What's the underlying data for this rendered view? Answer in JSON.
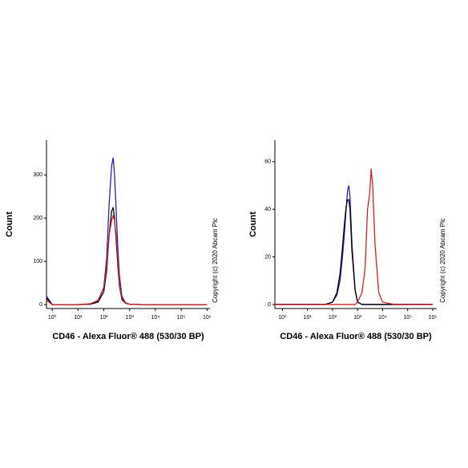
{
  "chart_data": [
    {
      "type": "line",
      "xscale": "log",
      "ylabel": "Count",
      "xlabel": "CD46 - Alexa Fluor® 488 (530/30 BP)",
      "annotation": "Copyright (c) 2020 Abcam Plc",
      "xlim": [
        0.6,
        1300000
      ],
      "ylim": [
        -9,
        380
      ],
      "xticks": [
        {
          "value": 1,
          "label": "10⁰"
        },
        {
          "value": 10,
          "label": "10¹"
        },
        {
          "value": 100,
          "label": "10²"
        },
        {
          "value": 1000,
          "label": "10³"
        },
        {
          "value": 10000,
          "label": "10⁴"
        },
        {
          "value": 100000,
          "label": "10⁵"
        },
        {
          "value": 1000000,
          "label": "10⁶"
        }
      ],
      "yticks": [
        0,
        100,
        200,
        300
      ],
      "x": [
        0.6,
        1,
        3,
        10,
        30,
        60,
        100,
        130,
        160,
        200,
        230,
        260,
        300,
        350,
        400,
        500,
        700,
        1000,
        3000,
        10000,
        100000,
        1000000
      ],
      "series": [
        {
          "color": "#2424b8",
          "values": [
            20,
            0,
            0,
            0,
            1,
            8,
            40,
            110,
            230,
            320,
            340,
            300,
            220,
            130,
            70,
            20,
            4,
            1,
            0,
            0,
            0,
            0
          ]
        },
        {
          "color": "#000000",
          "values": [
            15,
            0,
            0,
            0,
            1,
            6,
            30,
            80,
            160,
            215,
            225,
            200,
            150,
            90,
            45,
            12,
            3,
            1,
            0,
            0,
            0,
            0
          ]
        },
        {
          "color": "#cc2222",
          "values": [
            10,
            0,
            0,
            0,
            2,
            10,
            40,
            90,
            160,
            195,
            205,
            195,
            160,
            100,
            50,
            15,
            4,
            1,
            0,
            0,
            0,
            0
          ]
        }
      ]
    },
    {
      "type": "line",
      "xscale": "log",
      "ylabel": "Count",
      "xlabel": "CD46 - Alexa Fluor® 488 (530/30 BP)",
      "annotation": "Copyright (c) 2020 Abcam Plc",
      "xlim": [
        0.5,
        1450000
      ],
      "ylim": [
        -1.7,
        69
      ],
      "xticks": [
        {
          "value": 1,
          "label": "10⁰"
        },
        {
          "value": 10,
          "label": "10¹"
        },
        {
          "value": 100,
          "label": "10²"
        },
        {
          "value": 1000,
          "label": "10³"
        },
        {
          "value": 10000,
          "label": "10⁴"
        },
        {
          "value": 100000,
          "label": "10⁵"
        },
        {
          "value": 1000000,
          "label": "10⁶"
        }
      ],
      "yticks": [
        0,
        20,
        40,
        60
      ],
      "x": [
        0.5,
        1,
        10,
        50,
        100,
        150,
        200,
        250,
        300,
        350,
        400,
        450,
        500,
        600,
        800,
        1000,
        1500,
        2000,
        2500,
        3000,
        3500,
        4000,
        5000,
        7000,
        10000,
        30000,
        100000,
        1000000
      ],
      "series": [
        {
          "color": "#2424b8",
          "values": [
            0,
            0,
            0,
            0,
            1,
            4,
            10,
            20,
            30,
            40,
            48,
            50,
            45,
            25,
            6,
            1,
            0,
            0,
            0,
            0,
            0,
            0,
            0,
            0,
            0,
            0,
            0,
            0
          ]
        },
        {
          "color": "#000000",
          "values": [
            0,
            0,
            0,
            0,
            1,
            5,
            13,
            24,
            34,
            41,
            44,
            44,
            40,
            22,
            6,
            1,
            0,
            0,
            0,
            0,
            0,
            0,
            0,
            0,
            0,
            0,
            0,
            0
          ]
        },
        {
          "color": "#cc2222",
          "values": [
            0,
            0,
            0,
            0,
            0,
            0,
            0,
            0,
            0,
            0,
            0,
            0,
            0,
            0,
            0,
            1,
            5,
            15,
            40,
            46,
            57,
            50,
            25,
            5,
            1,
            0,
            0,
            0
          ]
        }
      ]
    }
  ]
}
